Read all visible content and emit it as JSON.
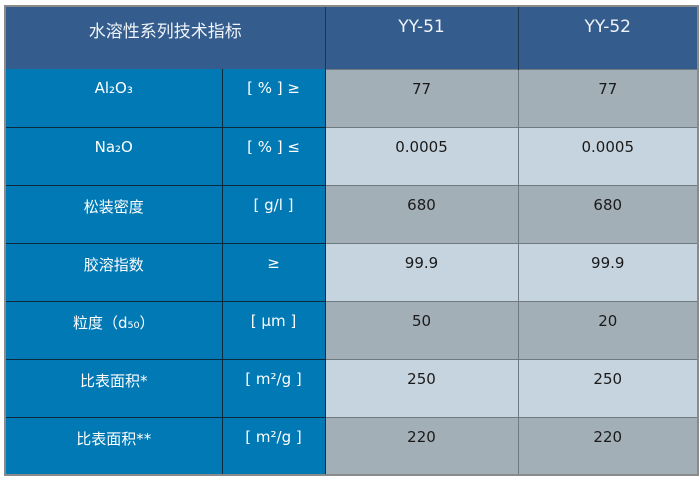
{
  "header": {
    "title": "水溶性系列技术指标",
    "columns": [
      "YY-51",
      "YY-52"
    ]
  },
  "rows": [
    {
      "name": "Al₂O₃",
      "unit": "[ % ] ≥",
      "yy51": "77",
      "yy52": "77"
    },
    {
      "name": "Na₂O",
      "unit": "[ % ] ≤",
      "yy51": "0.0005",
      "yy52": "0.0005"
    },
    {
      "name": "松装密度",
      "unit": "[ g/l ]",
      "yy51": "680",
      "yy52": "680"
    },
    {
      "name": "胶溶指数",
      "unit": "≥",
      "yy51": "99.9",
      "yy52": "99.9"
    },
    {
      "name": "粒度（d₅₀）",
      "unit": "[ µm ]",
      "yy51": "50",
      "yy52": "20"
    },
    {
      "name": "比表面积*",
      "unit": "[ m²/g ]",
      "yy51": "250",
      "yy52": "250"
    },
    {
      "name": "比表面积**",
      "unit": "[ m²/g ]",
      "yy51": "220",
      "yy52": "220"
    }
  ],
  "colors": {
    "header": "#345d8e",
    "label": "#0079b4",
    "dark_cell": "#a3afb7",
    "light_cell": "#c6d4df"
  }
}
